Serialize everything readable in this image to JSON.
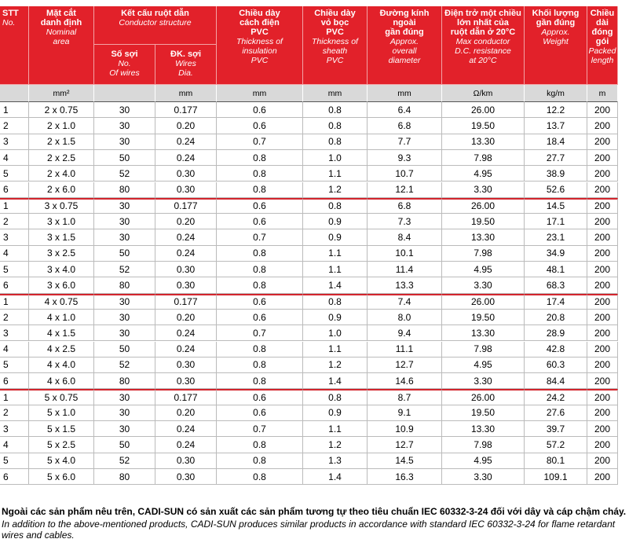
{
  "header": {
    "columns": [
      {
        "vi": "STT",
        "en": "No."
      },
      {
        "vi": "Mặt cắt\ndanh định",
        "en": "Nominal\narea"
      },
      {
        "vi": "Kết cấu ruột dẫn",
        "en": "Conductor structure",
        "sub": [
          {
            "vi": "Số sợi",
            "en": "No.\nOf wires"
          },
          {
            "vi": "ĐK. sợi",
            "en": "Wires\nDia."
          }
        ]
      },
      {
        "vi": "Chiều dày\ncách điện\nPVC",
        "en": "Thickness of\ninsulation\nPVC"
      },
      {
        "vi": "Chiều dày\nvỏ bọc\nPVC",
        "en": "Thickness of\nsheath\nPVC"
      },
      {
        "vi": "Đường kính\nngoài\ngần đúng",
        "en": "Approx.\noverall\ndiameter"
      },
      {
        "vi": "Điện trở một chiều\nlớn nhất của\nruột dẫn ở 20°C",
        "en": "Max conductor\nD.C. resistance\nat 20°C"
      },
      {
        "vi": "Khối lượng\ngần đúng",
        "en": "Approx.\nWeight"
      },
      {
        "vi": "Chiều\ndài\nđóng\ngói",
        "en": "Packed\nlength"
      }
    ]
  },
  "units": [
    "mm²",
    "mm",
    "mm",
    "mm",
    "mm",
    "Ω/km",
    "kg/m",
    "m"
  ],
  "rows": [
    [
      "1",
      "2 x 0.75",
      "30",
      "0.177",
      "0.6",
      "0.8",
      "6.4",
      "26.00",
      "12.2",
      "200"
    ],
    [
      "2",
      "2 x 1.0",
      "30",
      "0.20",
      "0.6",
      "0.8",
      "6.8",
      "19.50",
      "13.7",
      "200"
    ],
    [
      "3",
      "2 x 1.5",
      "30",
      "0.24",
      "0.7",
      "0.8",
      "7.7",
      "13.30",
      "18.4",
      "200"
    ],
    [
      "4",
      "2 x 2.5",
      "50",
      "0.24",
      "0.8",
      "1.0",
      "9.3",
      "7.98",
      "27.7",
      "200"
    ],
    [
      "5",
      "2 x 4.0",
      "52",
      "0.30",
      "0.8",
      "1.1",
      "10.7",
      "4.95",
      "38.9",
      "200"
    ],
    [
      "6",
      "2 x 6.0",
      "80",
      "0.30",
      "0.8",
      "1.2",
      "12.1",
      "3.30",
      "52.6",
      "200"
    ],
    [
      "1",
      "3 x 0.75",
      "30",
      "0.177",
      "0.6",
      "0.8",
      "6.8",
      "26.00",
      "14.5",
      "200"
    ],
    [
      "2",
      "3 x 1.0",
      "30",
      "0.20",
      "0.6",
      "0.9",
      "7.3",
      "19.50",
      "17.1",
      "200"
    ],
    [
      "3",
      "3 x 1.5",
      "30",
      "0.24",
      "0.7",
      "0.9",
      "8.4",
      "13.30",
      "23.1",
      "200"
    ],
    [
      "4",
      "3 x 2.5",
      "50",
      "0.24",
      "0.8",
      "1.1",
      "10.1",
      "7.98",
      "34.9",
      "200"
    ],
    [
      "5",
      "3 x 4.0",
      "52",
      "0.30",
      "0.8",
      "1.1",
      "11.4",
      "4.95",
      "48.1",
      "200"
    ],
    [
      "6",
      "3 x 6.0",
      "80",
      "0.30",
      "0.8",
      "1.4",
      "13.3",
      "3.30",
      "68.3",
      "200"
    ],
    [
      "1",
      "4 x 0.75",
      "30",
      "0.177",
      "0.6",
      "0.8",
      "7.4",
      "26.00",
      "17.4",
      "200"
    ],
    [
      "2",
      "4 x 1.0",
      "30",
      "0.20",
      "0.6",
      "0.9",
      "8.0",
      "19.50",
      "20.8",
      "200"
    ],
    [
      "3",
      "4 x 1.5",
      "30",
      "0.24",
      "0.7",
      "1.0",
      "9.4",
      "13.30",
      "28.9",
      "200"
    ],
    [
      "4",
      "4 x 2.5",
      "50",
      "0.24",
      "0.8",
      "1.1",
      "11.1",
      "7.98",
      "42.8",
      "200"
    ],
    [
      "5",
      "4 x 4.0",
      "52",
      "0.30",
      "0.8",
      "1.2",
      "12.7",
      "4.95",
      "60.3",
      "200"
    ],
    [
      "6",
      "4 x 6.0",
      "80",
      "0.30",
      "0.8",
      "1.4",
      "14.6",
      "3.30",
      "84.4",
      "200"
    ],
    [
      "1",
      "5 x 0.75",
      "30",
      "0.177",
      "0.6",
      "0.8",
      "8.7",
      "26.00",
      "24.2",
      "200"
    ],
    [
      "2",
      "5 x 1.0",
      "30",
      "0.20",
      "0.6",
      "0.9",
      "9.1",
      "19.50",
      "27.6",
      "200"
    ],
    [
      "3",
      "5 x 1.5",
      "30",
      "0.24",
      "0.7",
      "1.1",
      "10.9",
      "13.30",
      "39.7",
      "200"
    ],
    [
      "4",
      "5 x 2.5",
      "50",
      "0.24",
      "0.8",
      "1.2",
      "12.7",
      "7.98",
      "57.2",
      "200"
    ],
    [
      "5",
      "5 x 4.0",
      "52",
      "0.30",
      "0.8",
      "1.3",
      "14.5",
      "4.95",
      "80.1",
      "200"
    ],
    [
      "6",
      "5 x 6.0",
      "80",
      "0.30",
      "0.8",
      "1.4",
      "16.3",
      "3.30",
      "109.1",
      "200"
    ]
  ],
  "footer": {
    "vi": "Ngoài các sản phẩm nêu trên, CADI-SUN có sản xuất các sản phẩm tương tự theo tiêu chuẩn IEC 60332-3-24 đối với dây và cáp chậm cháy.",
    "en": "In addition to the above-mentioned products, CADI-SUN produces similar products in accordance with standard IEC 60332-3-24 for flame retardant wires and cables."
  }
}
